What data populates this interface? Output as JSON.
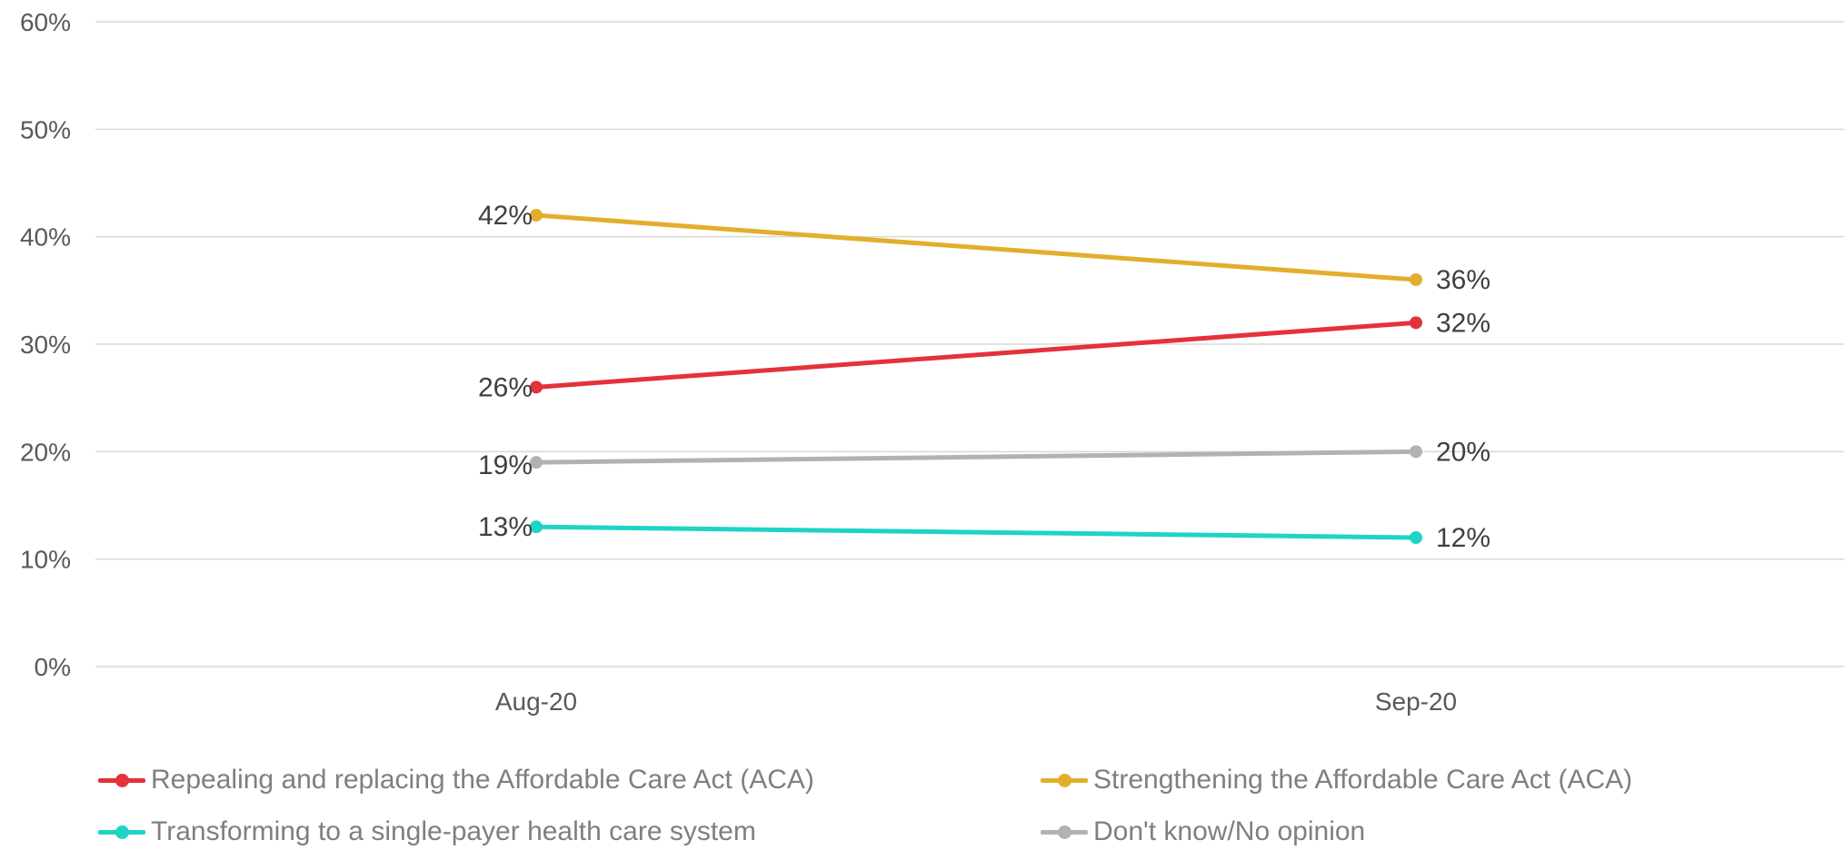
{
  "chart_data": {
    "type": "line",
    "categories": [
      "Aug-20",
      "Sep-20"
    ],
    "ylim": [
      0,
      60
    ],
    "yticks": [
      "0%",
      "10%",
      "20%",
      "30%",
      "40%",
      "50%",
      "60%"
    ],
    "grid": true,
    "legend_position": "bottom",
    "series": [
      {
        "name": "Repealing and replacing the Affordable Care Act (ACA)",
        "color": "#e3323a",
        "values": [
          26,
          32
        ],
        "labels": [
          "26%",
          "32%"
        ]
      },
      {
        "name": "Strengthening the Affordable Care Act (ACA)",
        "color": "#e3ae2d",
        "values": [
          42,
          36
        ],
        "labels": [
          "42%",
          "36%"
        ]
      },
      {
        "name": "Transforming to a single-payer health care system",
        "color": "#1fd3c6",
        "values": [
          13,
          12
        ],
        "labels": [
          "13%",
          "12%"
        ]
      },
      {
        "name": "Don't know/No opinion",
        "color": "#b2b2b2",
        "values": [
          19,
          20
        ],
        "labels": [
          "19%",
          "20%"
        ]
      }
    ]
  }
}
